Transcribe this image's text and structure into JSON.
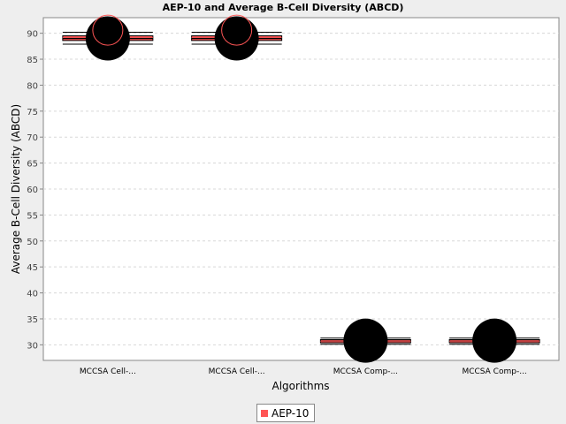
{
  "chart_data": {
    "type": "box",
    "title": "AEP-10 and Average B-Cell Diversity (ABCD)",
    "xlabel": "Algorithms",
    "ylabel": "Average B-Cell Diversity (ABCD)",
    "ylim": [
      27,
      93
    ],
    "yticks": [
      30,
      35,
      40,
      45,
      50,
      55,
      60,
      65,
      70,
      75,
      80,
      85,
      90
    ],
    "grid": true,
    "legend_position": "bottom",
    "categories": [
      "MCCSA Cell-...",
      "MCCSA Cell-...",
      "MCCSA Comp-...",
      "MCCSA Comp-..."
    ],
    "series": [
      {
        "name": "AEP-10",
        "color": "#ff5555",
        "boxes": [
          {
            "min": 87.9,
            "q1": 88.6,
            "median": 89.0,
            "mean": 89.2,
            "q3": 89.5,
            "max": 90.2,
            "outlier_mean_marker": 90.6,
            "outlier_black": 89.0
          },
          {
            "min": 87.9,
            "q1": 88.6,
            "median": 89.0,
            "mean": 89.2,
            "q3": 89.5,
            "max": 90.2,
            "outlier_mean_marker": 90.6,
            "outlier_black": 89.0
          },
          {
            "min": 30.1,
            "q1": 30.4,
            "median": 30.7,
            "mean": 30.7,
            "q3": 31.0,
            "max": 31.3,
            "outlier_black": 30.8
          },
          {
            "min": 30.1,
            "q1": 30.4,
            "median": 30.7,
            "mean": 30.7,
            "q3": 31.0,
            "max": 31.3,
            "outlier_black": 30.8
          }
        ]
      }
    ]
  }
}
